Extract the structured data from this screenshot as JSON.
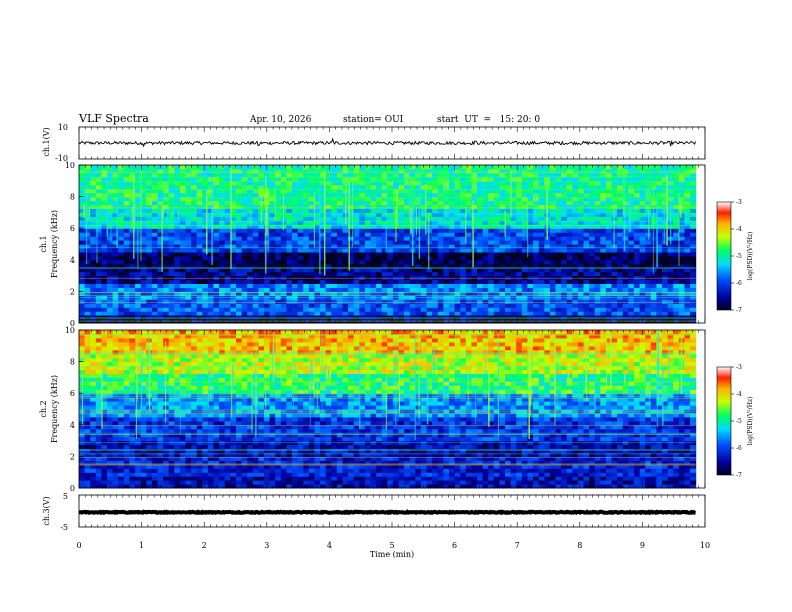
{
  "header": {
    "title": "VLF Spectra",
    "date": "Apr. 10, 2026",
    "station": "station= OUI",
    "start": "start  UT  =   15: 20: 0"
  },
  "chart_data": [
    {
      "id": "ch1-waveform",
      "type": "line",
      "ylabel": "ch.1(V)",
      "ylim": [
        -10,
        10
      ],
      "yticks": [
        "10",
        "-10"
      ],
      "xlim": [
        0,
        10
      ],
      "x_end": 9.85,
      "baseline": 0,
      "noise_amplitude": 1.0,
      "spikes": [
        [
          1.03,
          -2.0
        ],
        [
          2.87,
          -1.5
        ],
        [
          4.05,
          2.5
        ],
        [
          6.33,
          1.2
        ],
        [
          7.7,
          -1.0
        ],
        [
          9.45,
          -2.0
        ]
      ]
    },
    {
      "id": "ch1-spectrogram",
      "type": "heatmap",
      "ylabel_top": "ch.1",
      "ylabel": "Frequency (kHz)",
      "ylim": [
        0,
        10
      ],
      "yticks": [
        "0",
        "2",
        "4",
        "6",
        "8",
        "10"
      ],
      "xlim": [
        0,
        10
      ],
      "x_end": 9.85,
      "colorbar": {
        "label": "log(PSD)(V²/Hz)",
        "range": [
          -7,
          -3
        ],
        "ticks": [
          "-3",
          "-4",
          "-5",
          "-6",
          "-7"
        ]
      },
      "bands": [
        [
          0,
          0.4,
          -6.8
        ],
        [
          0.4,
          1.5,
          -5.9
        ],
        [
          1.5,
          2.4,
          -5.7
        ],
        [
          2.4,
          3.4,
          -6.6
        ],
        [
          3.4,
          4.6,
          -6.8
        ],
        [
          4.6,
          6.0,
          -6.0
        ],
        [
          6.0,
          7.2,
          -5.2
        ],
        [
          7.2,
          10.0,
          -4.9
        ]
      ]
    },
    {
      "id": "ch2-spectrogram",
      "type": "heatmap",
      "ylabel_top": "ch.2",
      "ylabel": "Frequency (kHz)",
      "ylim": [
        0,
        10
      ],
      "yticks": [
        "0",
        "2",
        "4",
        "6",
        "8",
        "10"
      ],
      "xlim": [
        0,
        10
      ],
      "x_end": 9.85,
      "colorbar": {
        "label": "log(PSD)(V²/Hz)",
        "range": [
          -7,
          -3
        ],
        "ticks": [
          "-3",
          "-4",
          "-5",
          "-6",
          "-7"
        ]
      },
      "bands": [
        [
          0,
          0.8,
          -6.4
        ],
        [
          0.8,
          2.0,
          -6.2
        ],
        [
          2.0,
          3.0,
          -6.4
        ],
        [
          3.0,
          4.5,
          -6.1
        ],
        [
          4.5,
          6.0,
          -5.6
        ],
        [
          6.0,
          7.2,
          -4.8
        ],
        [
          7.2,
          8.5,
          -4.3
        ],
        [
          8.5,
          10.0,
          -3.9
        ]
      ]
    },
    {
      "id": "ch3-waveform",
      "type": "line",
      "ylabel": "ch.3(V)",
      "ylim": [
        -5,
        5
      ],
      "yticks": [
        "5",
        "-5"
      ],
      "xlim": [
        0,
        10
      ],
      "x_end": 9.85,
      "baseline": -0.4,
      "noise_amplitude": 0.15,
      "spikes": []
    }
  ],
  "xaxis": {
    "label": "Time (min)",
    "ticks": [
      "0",
      "1",
      "2",
      "3",
      "4",
      "5",
      "6",
      "7",
      "8",
      "9",
      "10"
    ]
  }
}
